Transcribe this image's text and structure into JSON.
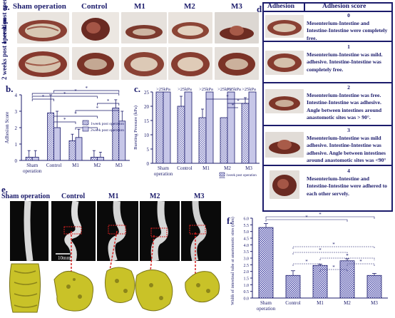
{
  "panel_a": {
    "letter": "a.",
    "columns": [
      "Sham operation",
      "Control",
      "M1",
      "M2",
      "M3"
    ],
    "rows": [
      "1 week post operation",
      "2 weeks post operation"
    ]
  },
  "panel_b": {
    "letter": "b.",
    "chart_data": {
      "type": "bar",
      "categories": [
        "Sham operation",
        "Control",
        "M1",
        "M2",
        "M3"
      ],
      "series": [
        {
          "name": "1week post operation",
          "values": [
            0.2,
            2.9,
            1.2,
            0.2,
            3.2
          ],
          "errors": [
            0.4,
            1.1,
            0.4,
            0.4,
            0.5
          ]
        },
        {
          "name": "2week post operation",
          "values": [
            0.2,
            2.0,
            1.4,
            0.2,
            2.4
          ],
          "errors": [
            0.4,
            1.0,
            0.5,
            0.3,
            0.6
          ]
        }
      ],
      "ylabel": "Adhesion Score",
      "ylim": [
        0,
        4
      ],
      "yticks": [
        "0",
        "1",
        "2",
        "3",
        "4"
      ],
      "significance_marks": [
        "*",
        "*",
        "*",
        "*",
        "*",
        "*",
        "*",
        "*",
        "*"
      ],
      "legend_position": "middle-right"
    }
  },
  "panel_c": {
    "letter": "c.",
    "chart_data": {
      "type": "bar",
      "categories": [
        "Sham operation",
        "Control",
        "M1",
        "M2",
        "M3"
      ],
      "series": [
        {
          "name": "1week post operation",
          "values": [
            25,
            20,
            16,
            16,
            21
          ],
          "errors": [
            0,
            3.5,
            3,
            0,
            2
          ]
        },
        {
          "name": "2week post operation",
          "values": [
            25,
            25,
            25,
            25,
            25
          ],
          "errors": [
            0,
            0,
            0,
            0,
            0
          ]
        }
      ],
      "ylabel": "Bursting Pressure (kPa)",
      "ylim": [
        0,
        25
      ],
      "yticks": [
        "0",
        "5",
        "10",
        "15",
        "20",
        "25"
      ],
      "bar_annotations": [
        ">25kPa",
        ">25kPa",
        ">25kPa",
        ">25kPa",
        ">25kPa",
        ">25kPa"
      ],
      "significance_marks": [
        "*",
        "*",
        "*"
      ],
      "legend_position": "bottom-right"
    }
  },
  "panel_d": {
    "letter": "d.",
    "headers": [
      "Adhesion",
      "Adhesion score"
    ],
    "rows": [
      {
        "score": "0",
        "text": "Mesenterium-Intestine and Intestine-Intestine were completely free."
      },
      {
        "score": "1",
        "text": "Mesenterium-Intestine was mild. adhesive. Intestine-Intestine was completely free."
      },
      {
        "score": "2",
        "text": "Mesenterium-Intestine was free. Intestine-Intestine was adhesive. Angle between intestines around anastomotic sites was > 90°."
      },
      {
        "score": "3",
        "text": "Mesenterium-Intestine was mild adhesive. Intestine-Intestine was adhesive. Angle between intestines around anastomotic sites was <90°"
      },
      {
        "score": "4",
        "text": "Mesenterium-Intestine and Intestine-Intestine were adhered to each other servely."
      }
    ]
  },
  "panel_e": {
    "letter": "e.",
    "columns": [
      "Sham operation",
      "Control",
      "M1",
      "M2",
      "M3"
    ],
    "scale_bar": "10mm"
  },
  "panel_f": {
    "letter": "f.",
    "chart_data": {
      "type": "bar",
      "categories": [
        "Sham operation",
        "Control",
        "M1",
        "M2",
        "M3"
      ],
      "values": [
        5.3,
        1.7,
        2.45,
        2.8,
        1.7
      ],
      "errors": [
        0.3,
        0.35,
        0.1,
        0.15,
        0.15
      ],
      "ylabel": "Width of intestinal tube at anastomotic sites (mm)",
      "ylim": [
        0,
        6
      ],
      "yticks": [
        "0.0",
        "0.5",
        "1.0",
        "1.5",
        "2.0",
        "2.5",
        "3.0",
        "3.5",
        "4.0",
        "4.5",
        "5.0",
        "5.5",
        "6.0"
      ],
      "significance_marks": [
        "*",
        "*",
        "*",
        "*",
        "*",
        "*",
        "*",
        "*"
      ]
    }
  },
  "colors": {
    "ink": "#1b1b6b",
    "bar_fill": "#c7c7e8",
    "red_arrow": "#d62020",
    "model_yellow": "#c9c228"
  }
}
